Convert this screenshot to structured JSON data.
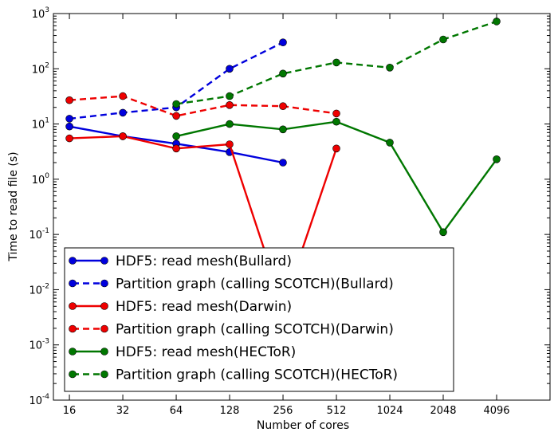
{
  "chart_data": {
    "type": "line",
    "title": "",
    "xlabel": "Number of cores",
    "ylabel": "Time to read file (s)",
    "x_scale": "log2",
    "y_scale": "log10",
    "xlim": [
      13,
      8192
    ],
    "ylim": [
      0.0001,
      1000
    ],
    "x_ticks": [
      16,
      32,
      64,
      128,
      256,
      512,
      1024,
      2048,
      4096
    ],
    "y_ticks": [
      {
        "base": "10",
        "exp": "-4",
        "value": 0.0001
      },
      {
        "base": "10",
        "exp": "-3",
        "value": 0.001
      },
      {
        "base": "10",
        "exp": "-2",
        "value": 0.01
      },
      {
        "base": "10",
        "exp": "-1",
        "value": 0.1
      },
      {
        "base": "10",
        "exp": "0",
        "value": 1
      },
      {
        "base": "10",
        "exp": "1",
        "value": 10
      },
      {
        "base": "10",
        "exp": "2",
        "value": 100
      },
      {
        "base": "10",
        "exp": "3",
        "value": 1000
      }
    ],
    "grid": false,
    "legend_position": "lower-left",
    "series": [
      {
        "name": "HDF5: read mesh(Bullard)",
        "color": "#0000dd",
        "style": "solid",
        "x": [
          16,
          32,
          64,
          128,
          256
        ],
        "y": [
          9.0,
          6.0,
          4.4,
          3.1,
          2.0
        ]
      },
      {
        "name": "Partition graph (calling SCOTCH)(Bullard)",
        "color": "#0000dd",
        "style": "dashed",
        "x": [
          16,
          32,
          64,
          128,
          256
        ],
        "y": [
          12.5,
          16,
          20,
          100,
          300
        ]
      },
      {
        "name": "HDF5: read mesh(Darwin)",
        "color": "#ee0000",
        "style": "solid",
        "x": [
          16,
          32,
          64,
          128,
          256,
          512
        ],
        "y": [
          5.5,
          6.0,
          3.6,
          4.3,
          0.005,
          3.6
        ]
      },
      {
        "name": "Partition graph (calling SCOTCH)(Darwin)",
        "color": "#ee0000",
        "style": "dashed",
        "x": [
          16,
          32,
          64,
          128,
          256,
          512
        ],
        "y": [
          27,
          32,
          14,
          22,
          21,
          15.5
        ]
      },
      {
        "name": "HDF5: read mesh(HECToR)",
        "color": "#007700",
        "style": "solid",
        "x": [
          64,
          128,
          256,
          512,
          1024,
          2048,
          4096
        ],
        "y": [
          6.0,
          10,
          8.0,
          11,
          4.6,
          0.11,
          2.3
        ]
      },
      {
        "name": "Partition graph (calling SCOTCH)(HECToR)",
        "color": "#007700",
        "style": "dashed",
        "x": [
          64,
          128,
          256,
          512,
          1024,
          2048,
          4096
        ],
        "y": [
          23,
          32,
          82,
          130,
          105,
          340,
          720
        ]
      }
    ]
  }
}
